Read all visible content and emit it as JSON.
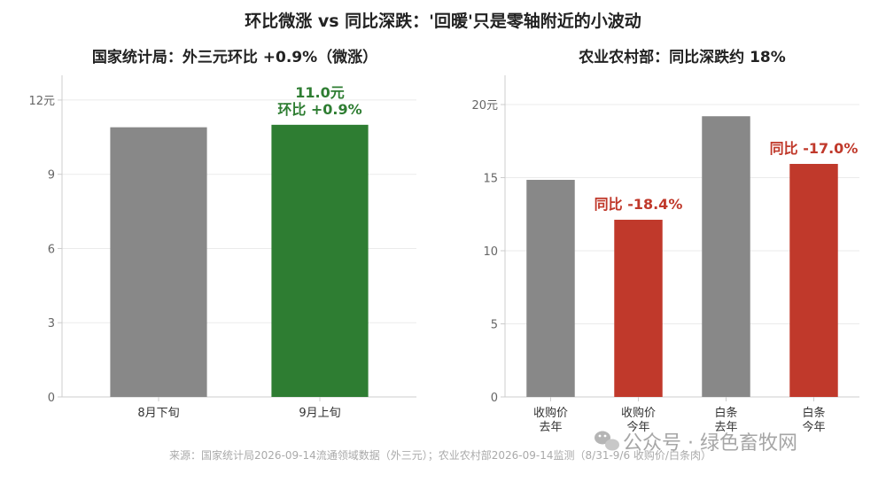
{
  "title": "环比微涨 vs 同比深跌：'回暖'只是零轴附近的小波动",
  "source": "来源：国家统计局2026-09-14流通领域数据（外三元）；农业农村部2026-09-14监测（8/31-9/6 收购价/白条肉）",
  "watermark": "公众号 · 绿色畜牧网",
  "colors": {
    "gray": "#888888",
    "green": "#2e7d32",
    "red": "#c0392b",
    "grid": "#ebebeb",
    "axis": "#cccccc",
    "tick_text": "#666666"
  },
  "chart_data": [
    {
      "type": "bar",
      "title": "国家统计局：外三元环比 +0.9%（微涨）",
      "categories": [
        "8月下旬",
        "9月上旬"
      ],
      "values": [
        10.9,
        11.0
      ],
      "bar_colors": [
        "gray",
        "green"
      ],
      "ylim": [
        0,
        13
      ],
      "yticks": [
        0,
        3,
        6,
        9,
        12
      ],
      "ytick_labels": [
        "0",
        "3",
        "6",
        "9",
        "12元"
      ],
      "grid": true,
      "annotations": [
        {
          "category_index": 1,
          "lines": [
            "11.0元",
            "环比 +0.9%"
          ],
          "color": "green"
        }
      ]
    },
    {
      "type": "bar",
      "title": "农业农村部：同比深跌约 18%",
      "categories": [
        [
          "收购价",
          "去年"
        ],
        [
          "收购价",
          "今年"
        ],
        [
          "白条",
          "去年"
        ],
        [
          "白条",
          "今年"
        ]
      ],
      "values": [
        14.85,
        12.12,
        19.2,
        15.94
      ],
      "bar_colors": [
        "gray",
        "red",
        "gray",
        "red"
      ],
      "ylim": [
        0,
        22
      ],
      "yticks": [
        0,
        5,
        10,
        15,
        20
      ],
      "ytick_labels": [
        "0",
        "5",
        "10",
        "15",
        "20元"
      ],
      "grid": true,
      "annotations": [
        {
          "category_index": 1,
          "lines": [
            "同比 -18.4%"
          ],
          "color": "red"
        },
        {
          "category_index": 3,
          "lines": [
            "同比 -17.0%"
          ],
          "color": "red"
        }
      ]
    }
  ]
}
